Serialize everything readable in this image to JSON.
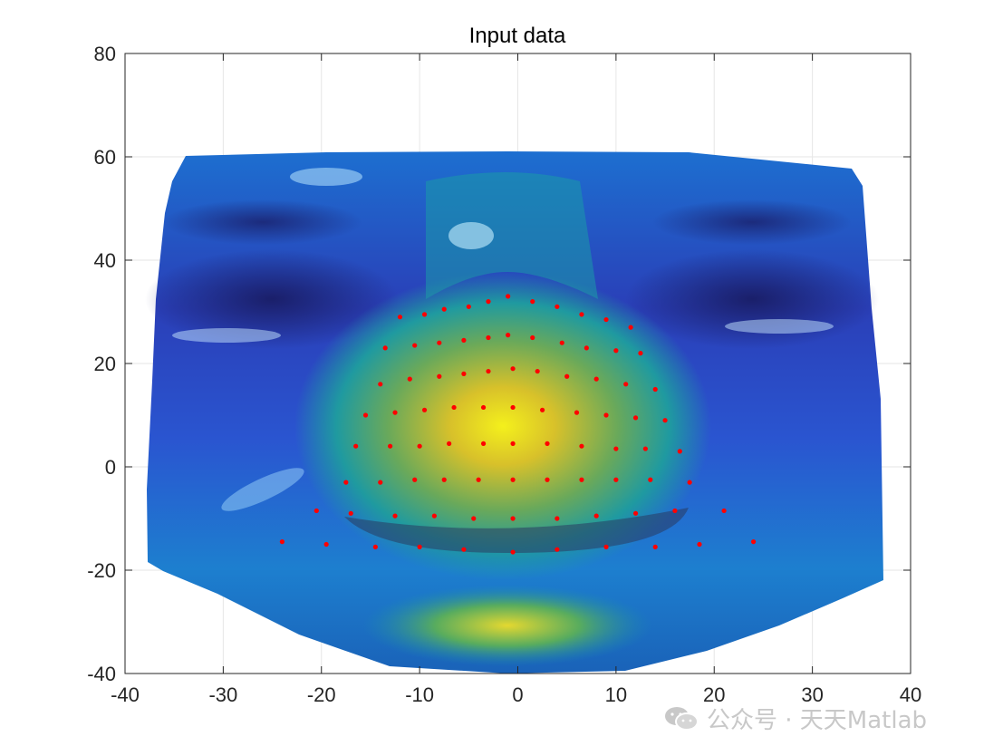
{
  "chart_data": {
    "type": "scatter",
    "title": "Input data",
    "xlabel": "",
    "ylabel": "",
    "xlim": [
      -40,
      40
    ],
    "ylim": [
      -40,
      80
    ],
    "xticks": [
      -40,
      -30,
      -20,
      -10,
      0,
      10,
      20,
      30,
      40
    ],
    "yticks": [
      -40,
      -20,
      0,
      20,
      40,
      60,
      80
    ],
    "grid": true,
    "background": "face surface colormap (parula) image",
    "series": [
      {
        "marker_color": "#ff0000",
        "x": [
          -12,
          -9.5,
          -7.5,
          -5,
          -3,
          -1,
          1.5,
          4,
          6.5,
          9,
          11.5,
          -13.5,
          -10.5,
          -8,
          -5.5,
          -3,
          -1,
          1.5,
          4.5,
          7,
          10,
          12.5,
          -14,
          -11,
          -8,
          -5.5,
          -3,
          -0.5,
          2,
          5,
          8,
          11,
          14,
          -15.5,
          -12.5,
          -9.5,
          -6.5,
          -3.5,
          -0.5,
          2.5,
          6,
          9,
          12,
          15,
          -16.5,
          -13,
          -10,
          -7,
          -3.5,
          -0.5,
          3,
          6.5,
          10,
          13,
          16.5,
          -17.5,
          -14,
          -10.5,
          -7.5,
          -4,
          -0.5,
          3,
          6.5,
          10,
          13.5,
          17.5,
          -20.5,
          -17,
          -12.5,
          -8.5,
          -4.5,
          -0.5,
          4,
          8,
          12,
          16,
          21,
          -24,
          -19.5,
          -14.5,
          -10,
          -5.5,
          -0.5,
          4,
          9,
          14,
          18.5,
          24
        ],
        "y": [
          29,
          29.5,
          30.5,
          31,
          32,
          33,
          32,
          31,
          29.5,
          28.5,
          27,
          23,
          23.5,
          24,
          24.5,
          25,
          25.5,
          25,
          24,
          23,
          22.5,
          22,
          16,
          17,
          17.5,
          18,
          18.5,
          19,
          18.5,
          17.5,
          17,
          16,
          15,
          10,
          10.5,
          11,
          11.5,
          11.5,
          11.5,
          11,
          10.5,
          10,
          9.5,
          9,
          4,
          4,
          4,
          4.5,
          4.5,
          4.5,
          4.5,
          4,
          3.5,
          3.5,
          3,
          -3,
          -3,
          -2.5,
          -2.5,
          -2.5,
          -2.5,
          -2.5,
          -2.5,
          -2.5,
          -2.5,
          -3,
          -8.5,
          -9,
          -9.5,
          -9.5,
          -10,
          -10,
          -10,
          -9.5,
          -9,
          -8.5,
          -8.5,
          -14.5,
          -15,
          -15.5,
          -15.5,
          -16,
          -16.5,
          -16,
          -15.5,
          -15.5,
          -15,
          -14.5
        ]
      }
    ]
  },
  "watermark": {
    "icon": "wechat-icon",
    "text": "公众号 · 天天Matlab"
  }
}
